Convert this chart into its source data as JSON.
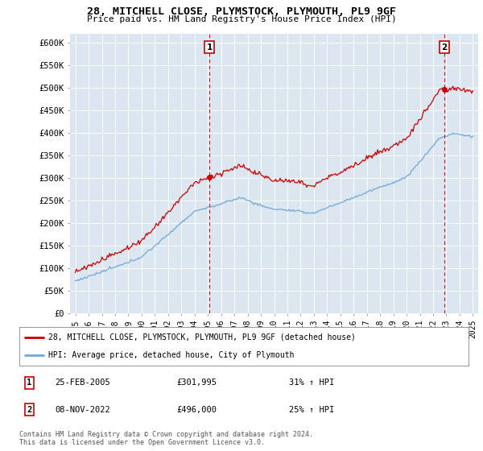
{
  "title_line1": "28, MITCHELL CLOSE, PLYMSTOCK, PLYMOUTH, PL9 9GF",
  "title_line2": "Price paid vs. HM Land Registry's House Price Index (HPI)",
  "ylim": [
    0,
    620000
  ],
  "yticks": [
    0,
    50000,
    100000,
    150000,
    200000,
    250000,
    300000,
    350000,
    400000,
    450000,
    500000,
    550000,
    600000
  ],
  "ytick_labels": [
    "£0",
    "£50K",
    "£100K",
    "£150K",
    "£200K",
    "£250K",
    "£300K",
    "£350K",
    "£400K",
    "£450K",
    "£500K",
    "£550K",
    "£600K"
  ],
  "sale1_date": 2005.12,
  "sale1_price": 301995,
  "sale2_date": 2022.86,
  "sale2_price": 496000,
  "hpi_color": "#6fa8dc",
  "sale_color": "#cc0000",
  "vline_color": "#cc0000",
  "legend_house_label": "28, MITCHELL CLOSE, PLYMSTOCK, PLYMOUTH, PL9 9GF (detached house)",
  "legend_hpi_label": "HPI: Average price, detached house, City of Plymouth",
  "annotation1_date": "25-FEB-2005",
  "annotation1_price": "£301,995",
  "annotation1_hpi": "31% ↑ HPI",
  "annotation2_date": "08-NOV-2022",
  "annotation2_price": "£496,000",
  "annotation2_hpi": "25% ↑ HPI",
  "footer": "Contains HM Land Registry data © Crown copyright and database right 2024.\nThis data is licensed under the Open Government Licence v3.0.",
  "background_color": "#dce6f1",
  "xlim_left": 1994.6,
  "xlim_right": 2025.4
}
